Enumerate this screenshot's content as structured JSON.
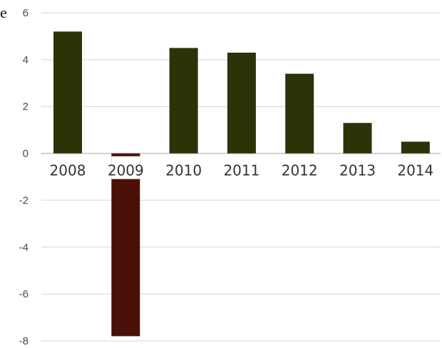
{
  "header_fragment": "e",
  "chart_data": {
    "type": "bar",
    "title": "",
    "xlabel": "",
    "ylabel": "",
    "categories": [
      "2008",
      "2009",
      "2010",
      "2011",
      "2012",
      "2013",
      "2014"
    ],
    "values": [
      5.2,
      -7.8,
      4.5,
      4.3,
      3.4,
      1.3,
      0.5
    ],
    "ylim": [
      -8,
      6
    ],
    "yticks": [
      "6",
      "4",
      "2",
      "0",
      "-2",
      "-4",
      "-6",
      "-8"
    ],
    "ytick_values": [
      6,
      4,
      2,
      0,
      -2,
      -4,
      -6,
      -8
    ],
    "grid": true,
    "legend": "none",
    "colors": {
      "positive": "#2b3308",
      "negative": "#4b1008",
      "grid": "#e3e3e3",
      "axis": "#cfcfcf"
    }
  }
}
